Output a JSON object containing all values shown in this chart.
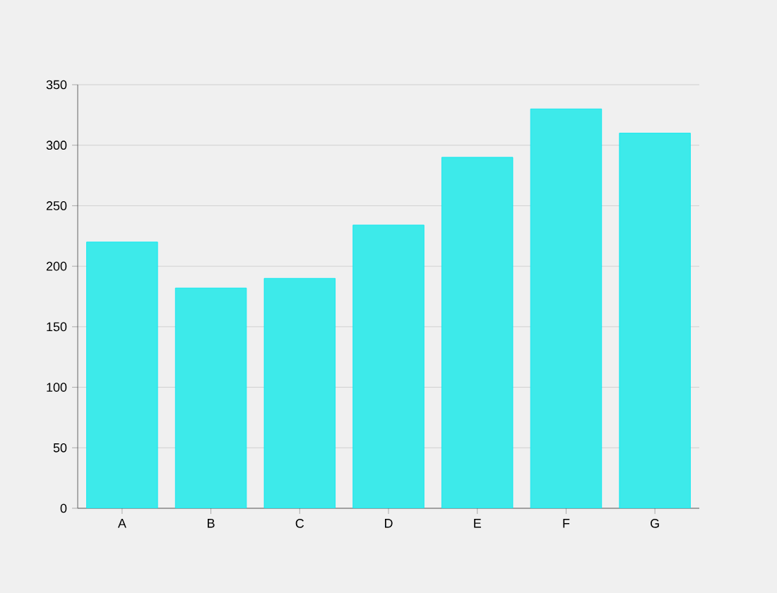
{
  "chart_data": {
    "type": "bar",
    "categories": [
      "A",
      "B",
      "C",
      "D",
      "E",
      "F",
      "G"
    ],
    "values": [
      220,
      182,
      190,
      234,
      290,
      330,
      310
    ],
    "color": "#3deaea",
    "ylim": [
      0,
      350
    ],
    "yticks": [
      0,
      50,
      100,
      150,
      200,
      250,
      300,
      350
    ],
    "grid": "y"
  }
}
